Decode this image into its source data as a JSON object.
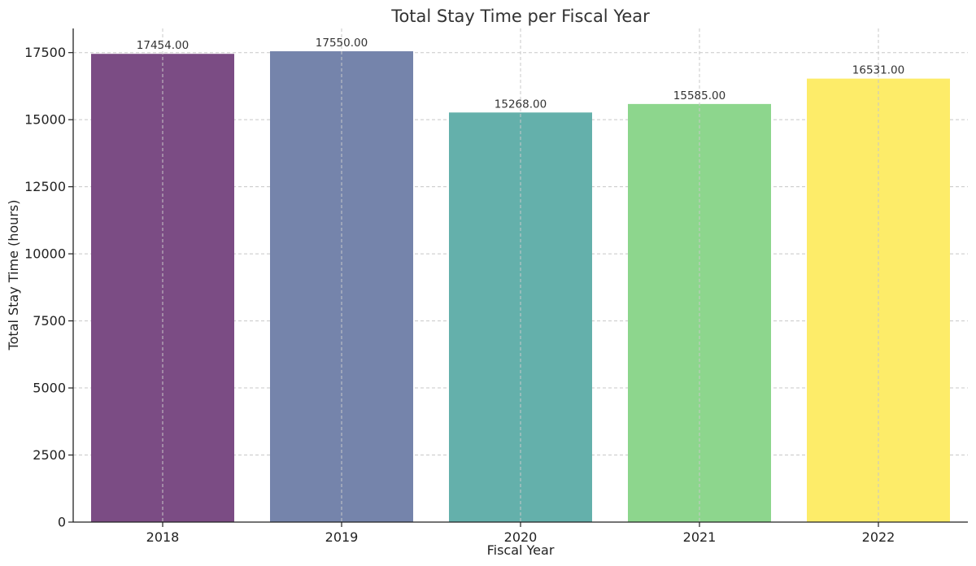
{
  "chart_data": {
    "type": "bar",
    "title": "Total Stay Time per Fiscal Year",
    "xlabel": "Fiscal Year",
    "ylabel": "Total Stay Time (hours)",
    "categories": [
      "2018",
      "2019",
      "2020",
      "2021",
      "2022"
    ],
    "values": [
      17454.0,
      17550.0,
      15268.0,
      15585.0,
      16531.0
    ],
    "value_labels": [
      "17454.00",
      "17550.00",
      "15268.00",
      "15585.00",
      "16531.00"
    ],
    "colors": [
      "#7b4c84",
      "#7584ab",
      "#64b0ab",
      "#8dd68d",
      "#fdec69"
    ],
    "ylim": [
      0,
      18400
    ],
    "yticks": [
      0,
      2500,
      5000,
      7500,
      10000,
      12500,
      15000,
      17500
    ],
    "ytick_labels": [
      "0",
      "2500",
      "5000",
      "7500",
      "10000",
      "12500",
      "15000",
      "17500"
    ],
    "grid": true,
    "legend": "none"
  }
}
